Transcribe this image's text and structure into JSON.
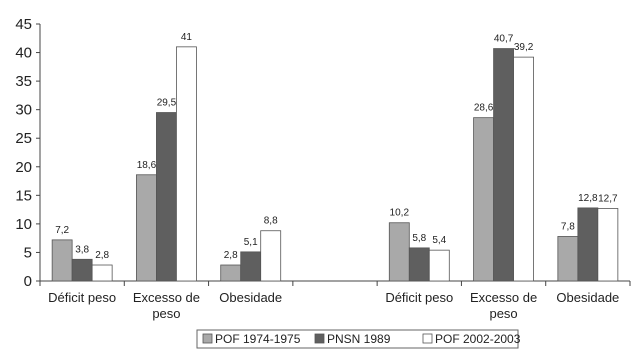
{
  "chart_data": {
    "type": "bar",
    "ylim": [
      0,
      45
    ],
    "yticks": [
      "0",
      "5",
      "10",
      "15",
      "20",
      "25",
      "30",
      "35",
      "40",
      "45"
    ],
    "categories": [
      [
        "Déficit peso"
      ],
      [
        "Excesso de",
        "peso"
      ],
      [
        "Obesidade"
      ],
      [
        ""
      ],
      [
        "Déficit peso"
      ],
      [
        "Excesso de",
        "peso"
      ],
      [
        "Obesidade"
      ]
    ],
    "series": [
      {
        "name": "POF 1974-1975",
        "color": "#a9a9a9",
        "values": [
          7.2,
          18.6,
          2.8,
          null,
          10.2,
          28.6,
          7.8
        ],
        "labels": [
          "7,2",
          "18,6",
          "2,8",
          "",
          "10,2",
          "28,6",
          "7,8"
        ]
      },
      {
        "name": "PNSN 1989",
        "color": "#5f5f5f",
        "values": [
          3.8,
          29.5,
          5.1,
          null,
          5.8,
          40.7,
          12.8
        ],
        "labels": [
          "3,8",
          "29,5",
          "5,1",
          "",
          "5,8",
          "40,7",
          "12,8"
        ]
      },
      {
        "name": "POF 2002-2003",
        "color": "#ffffff",
        "values": [
          2.8,
          41,
          8.8,
          null,
          5.4,
          39.2,
          12.7
        ],
        "labels": [
          "2,8",
          "41",
          "8,8",
          "",
          "5,4",
          "39,2",
          "12,7"
        ]
      }
    ],
    "grid": false,
    "legend_position": "bottom-center"
  }
}
